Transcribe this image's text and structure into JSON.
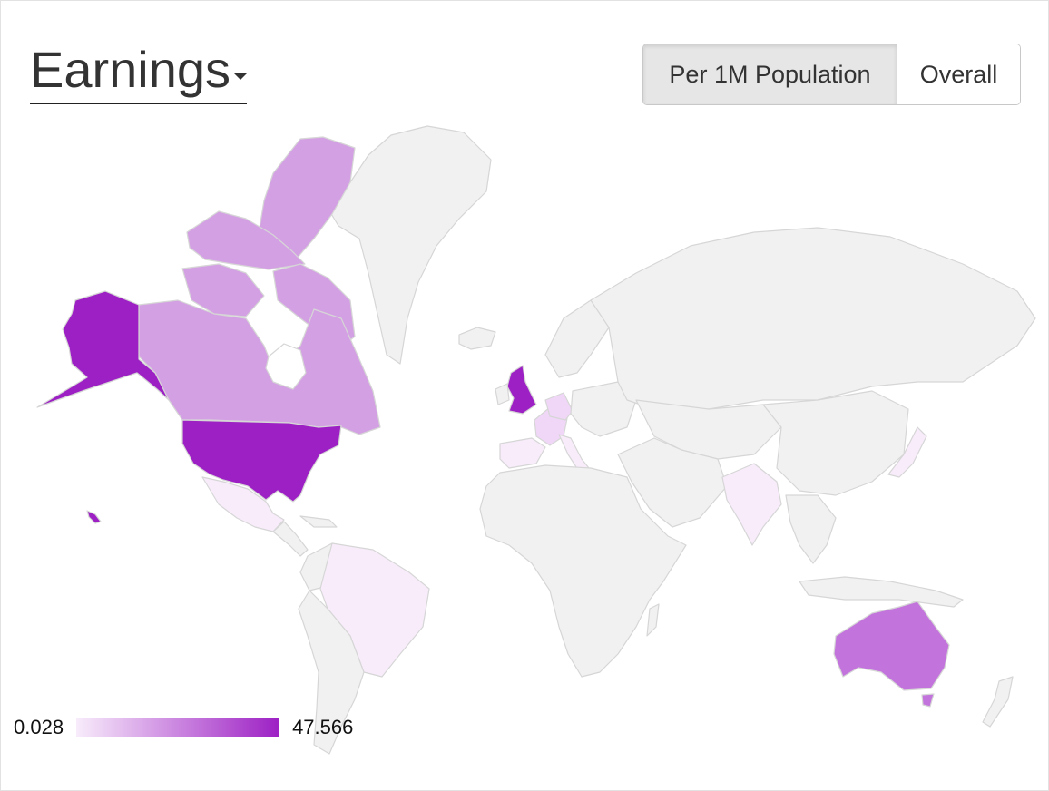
{
  "header": {
    "metric_label": "Earnings",
    "dropdown_icon": "caret-down-icon"
  },
  "toggle": {
    "per_population_label": "Per 1M Population",
    "overall_label": "Overall",
    "selected": "per_population"
  },
  "legend": {
    "min_label": "0.028",
    "max_label": "47.566",
    "min_color": "#f8ecfb",
    "max_color": "#9d20c4"
  },
  "colors": {
    "no_data": "#f1f1f1",
    "border": "#dcdcdc"
  },
  "map_regions": [
    {
      "name": "United States",
      "shade": "high"
    },
    {
      "name": "Alaska",
      "shade": "high"
    },
    {
      "name": "Hawaii",
      "shade": "high"
    },
    {
      "name": "United Kingdom",
      "shade": "high"
    },
    {
      "name": "Canada",
      "shade": "medium"
    },
    {
      "name": "Australia",
      "shade": "medium-high"
    },
    {
      "name": "France",
      "shade": "low"
    },
    {
      "name": "Germany",
      "shade": "low"
    },
    {
      "name": "Spain",
      "shade": "very-low"
    },
    {
      "name": "Italy",
      "shade": "very-low"
    },
    {
      "name": "Mexico",
      "shade": "very-low"
    },
    {
      "name": "Brazil",
      "shade": "very-low"
    },
    {
      "name": "India",
      "shade": "very-low"
    },
    {
      "name": "Japan",
      "shade": "very-low"
    }
  ]
}
